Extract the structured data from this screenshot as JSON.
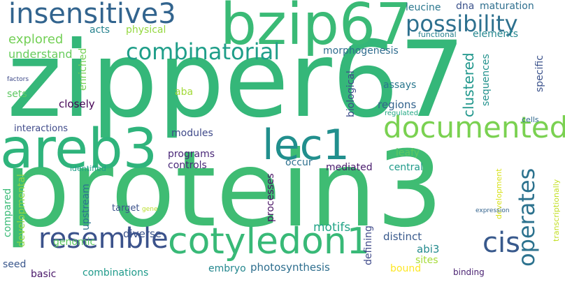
{
  "cloud": {
    "words": [
      {
        "text": "zipper67",
        "color": "#35b779"
      },
      {
        "text": "protein3",
        "color": "#3fbc73"
      },
      {
        "text": "bzip67",
        "color": "#3aba76"
      },
      {
        "text": "areb3",
        "color": "#2fb47c"
      },
      {
        "text": "cotyledon1",
        "color": "#38b977"
      },
      {
        "text": "lec1",
        "color": "#218f8d"
      },
      {
        "text": "documented",
        "color": "#7ad151"
      },
      {
        "text": "insensitive3",
        "color": "#32648e"
      },
      {
        "text": "resemble",
        "color": "#3b528b"
      },
      {
        "text": "combinatorial",
        "color": "#1f9e89"
      },
      {
        "text": "possibility",
        "color": "#2d708e"
      },
      {
        "text": "cis",
        "color": "#38598c"
      },
      {
        "text": "operates",
        "color": "#2c728e"
      },
      {
        "text": "explored",
        "color": "#73d056"
      },
      {
        "text": "understand",
        "color": "#67cc5c"
      },
      {
        "text": "acts",
        "color": "#26828e"
      },
      {
        "text": "physical",
        "color": "#95d840"
      },
      {
        "text": "enriched",
        "color": "#75d054"
      },
      {
        "text": "morphogenesis",
        "color": "#2f6c8e"
      },
      {
        "text": "leucine",
        "color": "#2a778e"
      },
      {
        "text": "dna",
        "color": "#3b528b"
      },
      {
        "text": "maturation",
        "color": "#2e6f8e"
      },
      {
        "text": "functional",
        "color": "#26828e"
      },
      {
        "text": "elements",
        "color": "#24868e"
      },
      {
        "text": "factors",
        "color": "#3e4a89"
      },
      {
        "text": "sets",
        "color": "#5ec962"
      },
      {
        "text": "aba",
        "color": "#a2da37"
      },
      {
        "text": "closely",
        "color": "#440154"
      },
      {
        "text": "clustered",
        "color": "#1f968b"
      },
      {
        "text": "sequences",
        "color": "#21918c"
      },
      {
        "text": "assays",
        "color": "#2a778e"
      },
      {
        "text": "biological",
        "color": "#3e4a89"
      },
      {
        "text": "regions",
        "color": "#33638d"
      },
      {
        "text": "specific",
        "color": "#3b528b"
      },
      {
        "text": "cells",
        "color": "#30698e"
      },
      {
        "text": "interactions",
        "color": "#3e4989"
      },
      {
        "text": "modules",
        "color": "#3e4989"
      },
      {
        "text": "regulated",
        "color": "#22a884"
      },
      {
        "text": "programs",
        "color": "#482677"
      },
      {
        "text": "controls",
        "color": "#482878"
      },
      {
        "text": "leafy",
        "color": "#5ec962"
      },
      {
        "text": "identified",
        "color": "#1f9e89"
      },
      {
        "text": "occur",
        "color": "#2d718e"
      },
      {
        "text": "mediated",
        "color": "#481a6c"
      },
      {
        "text": "central",
        "color": "#1f9a8a"
      },
      {
        "text": "transcriptionally",
        "color": "#c2df23"
      },
      {
        "text": "development",
        "color": "#d8e219"
      },
      {
        "text": "compared",
        "color": "#3aba76"
      },
      {
        "text": "developmental",
        "color": "#8fd744"
      },
      {
        "text": "upstream",
        "color": "#2b748e"
      },
      {
        "text": "target",
        "color": "#3b528b"
      },
      {
        "text": "gene",
        "color": "#b8de29"
      },
      {
        "text": "processes",
        "color": "#471063"
      },
      {
        "text": "motifs",
        "color": "#20a386"
      },
      {
        "text": "expression",
        "color": "#33638d"
      },
      {
        "text": "diverse",
        "color": "#3b528b"
      },
      {
        "text": "genomic",
        "color": "#5ec962"
      },
      {
        "text": "distinct",
        "color": "#38598c"
      },
      {
        "text": "abi3",
        "color": "#238a8d"
      },
      {
        "text": "defining",
        "color": "#3e4989"
      },
      {
        "text": "sites",
        "color": "#a5db36"
      },
      {
        "text": "binding",
        "color": "#481f70"
      },
      {
        "text": "seed",
        "color": "#39568c"
      },
      {
        "text": "basic",
        "color": "#481668"
      },
      {
        "text": "combinations",
        "color": "#1f9a8a"
      },
      {
        "text": "embryo",
        "color": "#24878e"
      },
      {
        "text": "photosynthesis",
        "color": "#2e6e8e"
      },
      {
        "text": "bound",
        "color": "#fde725"
      }
    ]
  }
}
